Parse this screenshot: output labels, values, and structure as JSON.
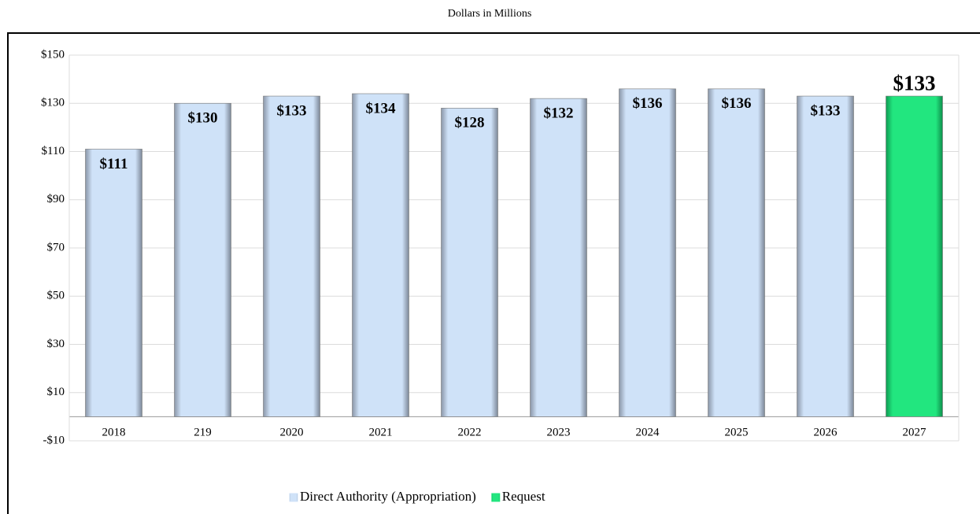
{
  "chart_data": {
    "type": "bar",
    "title": "Dollars in Millions",
    "categories": [
      "2018",
      "219",
      "2020",
      "2021",
      "2022",
      "2023",
      "2024",
      "2025",
      "2026",
      "2027"
    ],
    "series": [
      {
        "name": "Direct Authority (Appropriation)",
        "color": "#cfe2f8",
        "values": [
          111,
          130,
          133,
          134,
          128,
          132,
          136,
          136,
          133,
          null
        ],
        "value_labels": [
          "$111",
          "$130",
          "$133",
          "$134",
          "$128",
          "$132",
          "$136",
          "$136",
          "$133",
          null
        ]
      },
      {
        "name": "Request",
        "color": "#22e67f",
        "values": [
          null,
          null,
          null,
          null,
          null,
          null,
          null,
          null,
          null,
          133
        ],
        "value_labels": [
          null,
          null,
          null,
          null,
          null,
          null,
          null,
          null,
          null,
          "$133"
        ]
      }
    ],
    "ylim": [
      -10,
      150
    ],
    "yticks": [
      {
        "value": -10,
        "label": "-$10"
      },
      {
        "value": 10,
        "label": "$10"
      },
      {
        "value": 30,
        "label": "$30"
      },
      {
        "value": 50,
        "label": "$50"
      },
      {
        "value": 70,
        "label": "$70"
      },
      {
        "value": 90,
        "label": "$90"
      },
      {
        "value": 110,
        "label": "$110"
      },
      {
        "value": 130,
        "label": "$130"
      },
      {
        "value": 150,
        "label": "$150"
      }
    ],
    "grid": true,
    "legend": "bottom"
  }
}
